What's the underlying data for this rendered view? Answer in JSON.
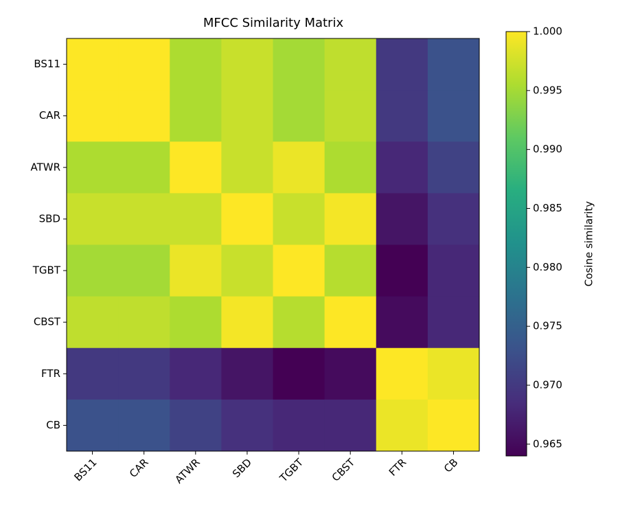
{
  "chart_data": {
    "type": "heatmap",
    "title": "MFCC Similarity Matrix",
    "categories": [
      "BS11",
      "CAR",
      "ATWR",
      "SBD",
      "TGBT",
      "CBST",
      "FTR",
      "CB"
    ],
    "values": [
      [
        1.0,
        1.0,
        0.9955,
        0.997,
        0.995,
        0.9965,
        0.97,
        0.973
      ],
      [
        1.0,
        1.0,
        0.9955,
        0.997,
        0.995,
        0.9965,
        0.97,
        0.973
      ],
      [
        0.9955,
        0.9955,
        1.0,
        0.997,
        0.999,
        0.9955,
        0.968,
        0.971
      ],
      [
        0.997,
        0.997,
        0.997,
        1.0,
        0.997,
        0.9995,
        0.966,
        0.969
      ],
      [
        0.995,
        0.995,
        0.999,
        0.997,
        1.0,
        0.996,
        0.964,
        0.968
      ],
      [
        0.9965,
        0.9965,
        0.9955,
        0.9995,
        0.996,
        1.0,
        0.965,
        0.968
      ],
      [
        0.97,
        0.97,
        0.968,
        0.966,
        0.964,
        0.965,
        1.0,
        0.999
      ],
      [
        0.973,
        0.973,
        0.971,
        0.969,
        0.968,
        0.968,
        0.999,
        1.0
      ]
    ],
    "colormap": "viridis",
    "clim": [
      0.964,
      1.0
    ],
    "cticks": [
      0.965,
      {
        "value": 0.97,
        "label": "0.970"
      },
      0.975,
      {
        "value": 0.98,
        "label": "0.980"
      },
      0.985,
      {
        "value": 0.99,
        "label": "0.990"
      },
      0.995,
      {
        "value": 1.0,
        "label": "1.000"
      }
    ],
    "colorbar_label": "Cosine similarity"
  }
}
